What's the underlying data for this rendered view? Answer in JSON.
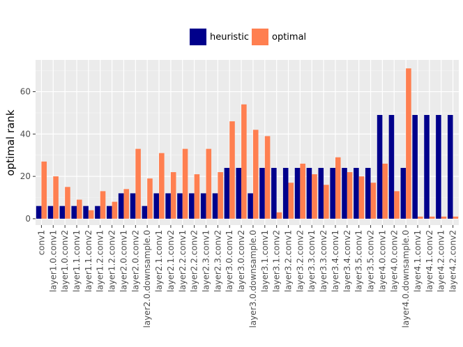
{
  "chart_data": {
    "type": "bar",
    "title": "",
    "xlabel": "",
    "ylabel": "optimal rank",
    "ylim": [
      -3,
      75
    ],
    "yticks": [
      0,
      20,
      40,
      60
    ],
    "grid": true,
    "legend_position": "top",
    "categories": [
      "conv1",
      "layer1.0.conv1",
      "layer1.0.conv2",
      "layer1.1.conv1",
      "layer1.1.conv2",
      "layer1.2.conv1",
      "layer1.2.conv2",
      "layer2.0.conv1",
      "layer2.0.conv2",
      "layer2.0.downsample.0",
      "layer2.1.conv1",
      "layer2.1.conv2",
      "layer2.2.conv1",
      "layer2.2.conv2",
      "layer2.3.conv1",
      "layer2.3.conv2",
      "layer3.0.conv1",
      "layer3.0.conv2",
      "layer3.0.downsample.0",
      "layer3.1.conv1",
      "layer3.1.conv2",
      "layer3.2.conv1",
      "layer3.2.conv2",
      "layer3.3.conv1",
      "layer3.3.conv2",
      "layer3.4.conv1",
      "layer3.4.conv2",
      "layer3.5.conv1",
      "layer3.5.conv2",
      "layer4.0.conv1",
      "layer4.0.conv2",
      "layer4.0.downsample.0",
      "layer4.1.conv1",
      "layer4.1.conv2",
      "layer4.2.conv1",
      "layer4.2.conv2"
    ],
    "series": [
      {
        "name": "heuristic",
        "color": "#00008B",
        "values": [
          6,
          6,
          6,
          6,
          6,
          6,
          6,
          12,
          12,
          6,
          12,
          12,
          12,
          12,
          12,
          12,
          24,
          24,
          12,
          24,
          24,
          24,
          24,
          24,
          24,
          24,
          24,
          24,
          24,
          49,
          49,
          24,
          49,
          49,
          49,
          49
        ]
      },
      {
        "name": "optimal",
        "color": "#FF7F50",
        "values": [
          27,
          20,
          15,
          9,
          4,
          13,
          8,
          14,
          33,
          19,
          31,
          22,
          33,
          21,
          33,
          22,
          46,
          54,
          42,
          39,
          3,
          17,
          26,
          21,
          16,
          29,
          22,
          20,
          17,
          26,
          13,
          71,
          1,
          1,
          1,
          1
        ]
      }
    ]
  }
}
